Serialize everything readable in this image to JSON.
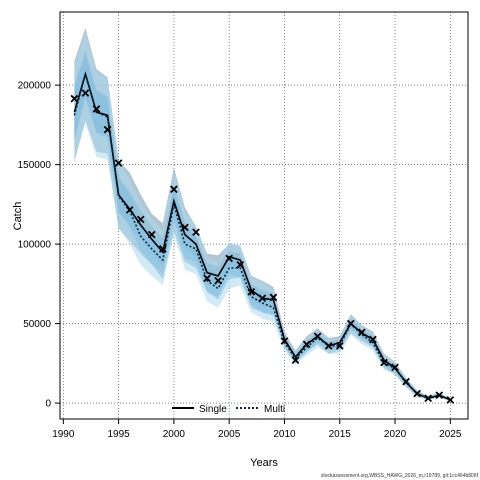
{
  "chart_data": {
    "type": "line",
    "xlabel": "Years",
    "ylabel": "Catch",
    "xlim": [
      1989.7,
      2026.6
    ],
    "ylim": [
      -10000,
      246000
    ],
    "xticks": [
      1990,
      1995,
      2000,
      2005,
      2010,
      2015,
      2020,
      2025
    ],
    "yticks": [
      0,
      50000,
      100000,
      150000,
      200000
    ],
    "grid": true,
    "legend_position": "bottom-center",
    "legend": [
      {
        "name": "Single",
        "style": "solid"
      },
      {
        "name": "Multi",
        "style": "dotted"
      }
    ],
    "colors": {
      "single_band_outer": "#7f9fb4",
      "single_band_inner": "#6c93ab",
      "multi_band_outer": "#a9d8f1",
      "multi_band_inner": "#7ec0e6",
      "multi_line": "#0a2a3a",
      "observed": "#000000"
    },
    "observed_catch": {
      "x": [
        1991,
        1992,
        1993,
        1994,
        1995,
        1996,
        1997,
        1998,
        1999,
        2000,
        2001,
        2002,
        2003,
        2004,
        2005,
        2006,
        2007,
        2008,
        2009,
        2010,
        2011,
        2012,
        2013,
        2014,
        2015,
        2016,
        2017,
        2018,
        2019,
        2020,
        2021,
        2022,
        2023,
        2024,
        2025
      ],
      "y": [
        191500,
        195000,
        185000,
        172000,
        151000,
        121500,
        115500,
        106000,
        97000,
        134500,
        110500,
        107500,
        78500,
        77000,
        91000,
        87000,
        70000,
        66000,
        66500,
        39000,
        27000,
        37000,
        42000,
        36000,
        36000,
        50000,
        44500,
        40000,
        25500,
        22500,
        13500,
        6000,
        3000,
        5000,
        2000
      ]
    },
    "series": [
      {
        "name": "Single",
        "x": [
          1991,
          1992,
          1993,
          1994,
          1995,
          1996,
          1997,
          1998,
          1999,
          2000,
          2001,
          2002,
          2003,
          2004,
          2005,
          2006,
          2007,
          2008,
          2009,
          2010,
          2011,
          2012,
          2013,
          2014,
          2015,
          2016,
          2017,
          2018,
          2019,
          2020,
          2021,
          2022,
          2023,
          2024,
          2025
        ],
        "median": [
          183000,
          207000,
          183000,
          181000,
          131000,
          122000,
          112000,
          103000,
          95000,
          127000,
          106000,
          100000,
          82000,
          80000,
          92000,
          90000,
          71000,
          66000,
          65000,
          40000,
          29000,
          37000,
          42000,
          36000,
          38000,
          50000,
          44000,
          40000,
          27000,
          22000,
          13000,
          6000,
          3000,
          5000,
          2000
        ],
        "upper_outer": [
          215000,
          236000,
          210000,
          205000,
          153000,
          145000,
          131000,
          119000,
          113000,
          148000,
          123000,
          111000,
          94000,
          93000,
          100000,
          99000,
          80000,
          77000,
          73000,
          45000,
          33000,
          42000,
          47000,
          41000,
          42000,
          56000,
          49000,
          45000,
          31000,
          26000,
          16000,
          8000,
          4500,
          6500,
          3000
        ],
        "lower_outer": [
          152000,
          178000,
          158000,
          157000,
          110000,
          102000,
          94000,
          87000,
          78000,
          108000,
          89000,
          85000,
          70000,
          67000,
          81000,
          79000,
          60000,
          57000,
          56000,
          35000,
          25000,
          32000,
          37000,
          31000,
          33000,
          44000,
          39000,
          35000,
          22000,
          18000,
          10000,
          4000,
          2000,
          3500,
          1200
        ],
        "upper_inner": [
          200000,
          222000,
          197000,
          193000,
          142000,
          133000,
          121000,
          111000,
          104000,
          137000,
          114000,
          105000,
          88000,
          86000,
          96000,
          94000,
          75000,
          71000,
          69000,
          42500,
          31000,
          39500,
          44500,
          38500,
          40000,
          53000,
          46500,
          42500,
          29000,
          24000,
          14500,
          7000,
          3700,
          5700,
          2500
        ],
        "lower_inner": [
          166000,
          192000,
          170000,
          169000,
          120000,
          112000,
          103000,
          95000,
          86000,
          117000,
          97000,
          92000,
          76000,
          73000,
          86000,
          84000,
          65000,
          61000,
          60000,
          37500,
          27000,
          34500,
          39500,
          33500,
          35500,
          47000,
          41500,
          37500,
          24500,
          20000,
          11500,
          5000,
          2500,
          4200,
          1500
        ]
      },
      {
        "name": "Multi",
        "x": [
          1991,
          1992,
          1993,
          1994,
          1995,
          1996,
          1997,
          1998,
          1999,
          2000,
          2001,
          2002,
          2003,
          2004,
          2005,
          2006,
          2007,
          2008,
          2009,
          2010,
          2011,
          2012,
          2013,
          2014,
          2015,
          2016,
          2017,
          2018,
          2019,
          2020,
          2021,
          2022,
          2023,
          2024,
          2025
        ],
        "median": [
          181000,
          207000,
          183000,
          180000,
          130000,
          121000,
          105000,
          97000,
          90000,
          125000,
          100000,
          97000,
          77000,
          72000,
          85000,
          85000,
          67000,
          63000,
          60000,
          38000,
          28000,
          35000,
          41000,
          36000,
          36000,
          50000,
          43000,
          38000,
          25000,
          22000,
          13000,
          6000,
          3000,
          5000,
          2000
        ],
        "upper_outer": [
          212000,
          233000,
          208000,
          204000,
          152000,
          141000,
          126000,
          116000,
          108000,
          146000,
          121000,
          111000,
          92000,
          89000,
          101000,
          99000,
          79000,
          76000,
          72000,
          44000,
          32000,
          41000,
          46000,
          40000,
          41000,
          55000,
          48000,
          44000,
          30000,
          26000,
          16000,
          8000,
          4500,
          6500,
          3000
        ],
        "lower_outer": [
          152000,
          176000,
          155000,
          153000,
          110000,
          100000,
          87000,
          80000,
          74000,
          106000,
          84000,
          81000,
          64000,
          60000,
          72000,
          74000,
          57000,
          53000,
          51000,
          33000,
          24000,
          30000,
          35000,
          31000,
          31000,
          43000,
          37000,
          33000,
          21000,
          18000,
          10000,
          4000,
          2000,
          3500,
          1200
        ],
        "upper_inner": [
          198000,
          219000,
          195000,
          192000,
          141000,
          131000,
          115000,
          106000,
          99000,
          135000,
          111000,
          104000,
          85000,
          81000,
          93000,
          92000,
          73000,
          70000,
          66000,
          41000,
          30000,
          38000,
          43500,
          38000,
          38500,
          52500,
          45500,
          41000,
          27500,
          24000,
          14500,
          7000,
          3700,
          5700,
          2500
        ],
        "lower_inner": [
          165000,
          193000,
          170000,
          167000,
          120000,
          111000,
          96000,
          88000,
          81000,
          115000,
          91000,
          89000,
          70000,
          65000,
          78000,
          79000,
          62000,
          57000,
          55000,
          35500,
          26000,
          32500,
          38000,
          33500,
          33500,
          47000,
          40500,
          35500,
          23000,
          20000,
          11500,
          5000,
          2500,
          4200,
          1500
        ]
      }
    ]
  },
  "footer": {
    "note": "stockassessment.org,WBSS_HAWG_2026_m,r19789, git:1cc464b806f"
  }
}
